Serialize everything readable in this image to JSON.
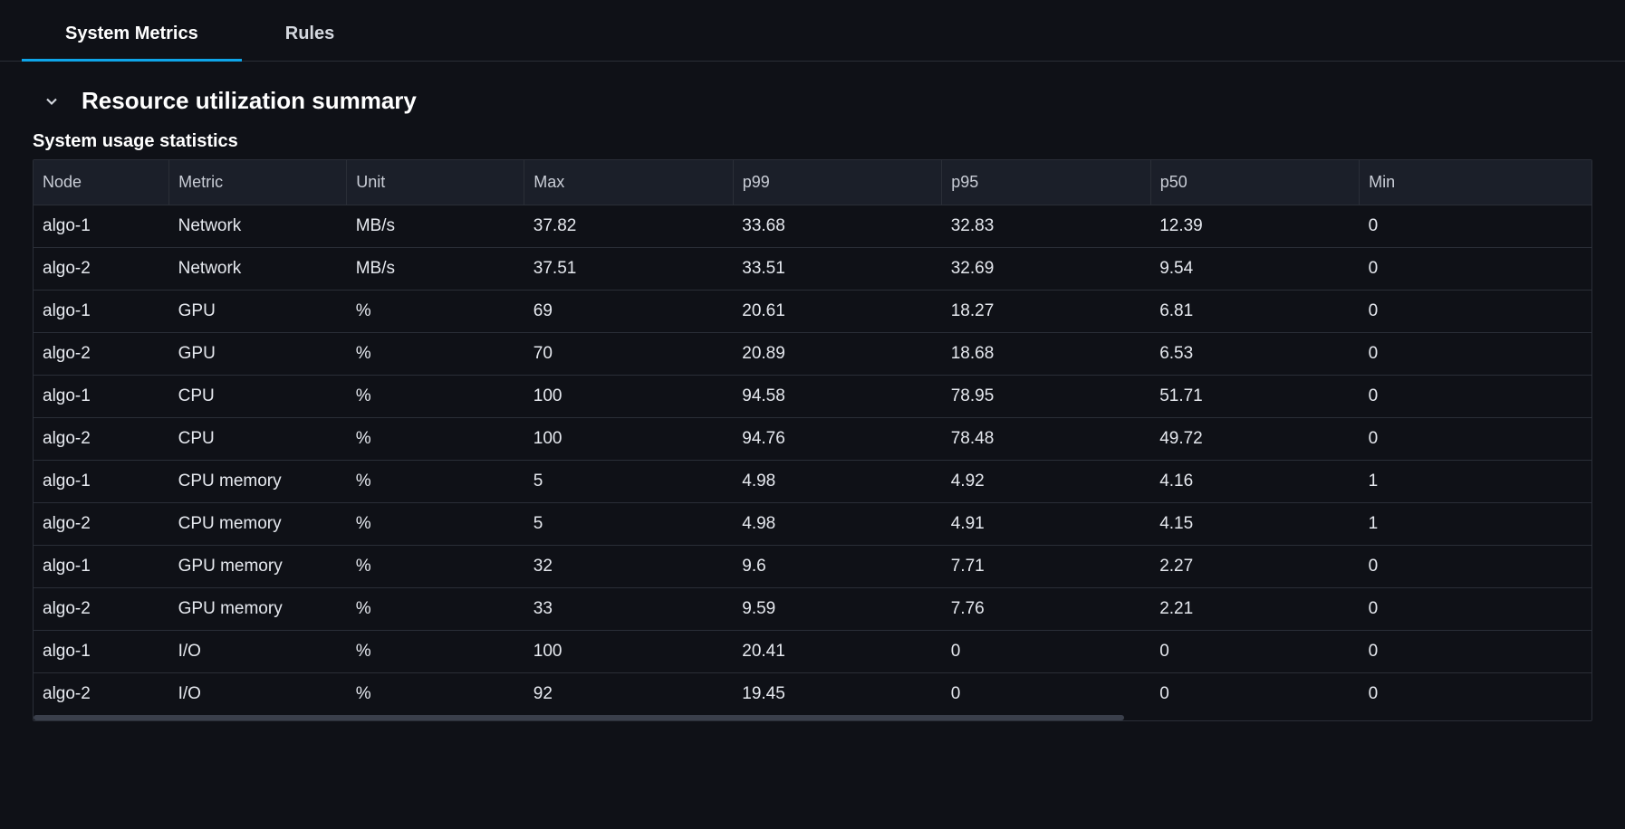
{
  "accent_color": "#0ea5e9",
  "tabs": [
    {
      "label": "System Metrics",
      "active": true
    },
    {
      "label": "Rules",
      "active": false
    }
  ],
  "section": {
    "title": "Resource utilization summary",
    "expanded": true
  },
  "subtitle": "System usage statistics",
  "table": {
    "type": "table",
    "background_color": "#0f1117",
    "header_background": "#1b1f29",
    "border_color": "#2a2e37",
    "text_color": "#e6e9ef",
    "header_text_color": "#c9cdd6",
    "font_size": 19,
    "columns": [
      {
        "key": "node",
        "label": "Node",
        "width_pct": 8.7
      },
      {
        "key": "metric",
        "label": "Metric",
        "width_pct": 11.4
      },
      {
        "key": "unit",
        "label": "Unit",
        "width_pct": 11.4
      },
      {
        "key": "max",
        "label": "Max",
        "width_pct": 13.4
      },
      {
        "key": "p99",
        "label": "p99",
        "width_pct": 13.4
      },
      {
        "key": "p95",
        "label": "p95",
        "width_pct": 13.4
      },
      {
        "key": "p50",
        "label": "p50",
        "width_pct": 13.4
      },
      {
        "key": "min",
        "label": "Min",
        "width_pct": 14.9
      }
    ],
    "rows": [
      [
        "algo-1",
        "Network",
        "MB/s",
        "37.82",
        "33.68",
        "32.83",
        "12.39",
        "0"
      ],
      [
        "algo-2",
        "Network",
        "MB/s",
        "37.51",
        "33.51",
        "32.69",
        "9.54",
        "0"
      ],
      [
        "algo-1",
        "GPU",
        "%",
        "69",
        "20.61",
        "18.27",
        "6.81",
        "0"
      ],
      [
        "algo-2",
        "GPU",
        "%",
        "70",
        "20.89",
        "18.68",
        "6.53",
        "0"
      ],
      [
        "algo-1",
        "CPU",
        "%",
        "100",
        "94.58",
        "78.95",
        "51.71",
        "0"
      ],
      [
        "algo-2",
        "CPU",
        "%",
        "100",
        "94.76",
        "78.48",
        "49.72",
        "0"
      ],
      [
        "algo-1",
        "CPU memory",
        "%",
        "5",
        "4.98",
        "4.92",
        "4.16",
        "1"
      ],
      [
        "algo-2",
        "CPU memory",
        "%",
        "5",
        "4.98",
        "4.91",
        "4.15",
        "1"
      ],
      [
        "algo-1",
        "GPU memory",
        "%",
        "32",
        "9.6",
        "7.71",
        "2.27",
        "0"
      ],
      [
        "algo-2",
        "GPU memory",
        "%",
        "33",
        "9.59",
        "7.76",
        "2.21",
        "0"
      ],
      [
        "algo-1",
        "I/O",
        "%",
        "100",
        "20.41",
        "0",
        "0",
        "0"
      ],
      [
        "algo-2",
        "I/O",
        "%",
        "92",
        "19.45",
        "0",
        "0",
        "0"
      ]
    ]
  },
  "scrollbar": {
    "thumb_pct": 70
  }
}
